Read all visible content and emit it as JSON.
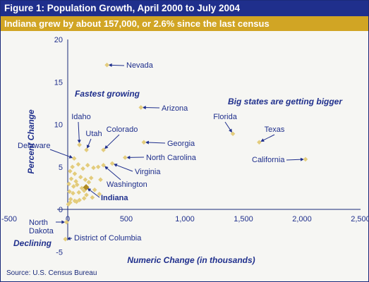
{
  "header": {
    "title": "Figure 1: Population Growth, April 2000 to July 2004",
    "subtitle": "Indiana grew by about 157,000, or 2.6% since the last census"
  },
  "footer": {
    "source": "Source: U.S. Census Bureau"
  },
  "colors": {
    "navy": "#1f2f8c",
    "gold": "#d1a524",
    "marker": "#e3cc7c",
    "indiana_marker": "#b08a20"
  },
  "chart_data": {
    "type": "scatter",
    "xlabel": "Numeric Change (in thousands)",
    "ylabel": "Percent Change",
    "xlim": [
      -500,
      2500
    ],
    "ylim": [
      -5,
      20
    ],
    "xticks": [
      -500,
      0,
      500,
      1000,
      1500,
      2000,
      2500
    ],
    "xtick_labels": [
      "-500",
      "0",
      "500",
      "1,000",
      "1,500",
      "2,000",
      "2,500"
    ],
    "yticks": [
      -5,
      0,
      5,
      10,
      15,
      20
    ],
    "grid": false,
    "annotations": [
      "Fastest growing",
      "Big states are getting bigger",
      "Declining"
    ],
    "labeled_points": [
      {
        "label": "Nevada",
        "x": 335,
        "y": 17.0
      },
      {
        "label": "Arizona",
        "x": 625,
        "y": 12.0
      },
      {
        "label": "Florida",
        "x": 1410,
        "y": 8.9
      },
      {
        "label": "Texas",
        "x": 1635,
        "y": 7.9
      },
      {
        "label": "California",
        "x": 2030,
        "y": 5.9
      },
      {
        "label": "Georgia",
        "x": 650,
        "y": 7.9
      },
      {
        "label": "North Carolina",
        "x": 490,
        "y": 6.1
      },
      {
        "label": "Idaho",
        "x": 100,
        "y": 7.6
      },
      {
        "label": "Utah",
        "x": 160,
        "y": 7.0
      },
      {
        "label": "Colorado",
        "x": 305,
        "y": 7.0
      },
      {
        "label": "Delaware",
        "x": 55,
        "y": 6.0
      },
      {
        "label": "Virginia",
        "x": 380,
        "y": 5.4
      },
      {
        "label": "Washington",
        "x": 305,
        "y": 5.2
      },
      {
        "label": "Indiana",
        "x": 157,
        "y": 2.6
      },
      {
        "label": "North Dakota",
        "x": -10,
        "y": -1.5
      },
      {
        "label": "District of Columbia",
        "x": -20,
        "y": -3.5
      }
    ],
    "other_points": [
      {
        "x": 20,
        "y": 4.5
      },
      {
        "x": 40,
        "y": 5.0
      },
      {
        "x": 60,
        "y": 4.2
      },
      {
        "x": 90,
        "y": 5.3
      },
      {
        "x": 130,
        "y": 4.8
      },
      {
        "x": 170,
        "y": 5.2
      },
      {
        "x": 220,
        "y": 4.9
      },
      {
        "x": 260,
        "y": 5.0
      },
      {
        "x": 30,
        "y": 3.6
      },
      {
        "x": 70,
        "y": 3.3
      },
      {
        "x": 110,
        "y": 3.8
      },
      {
        "x": 150,
        "y": 3.5
      },
      {
        "x": 200,
        "y": 3.7
      },
      {
        "x": 180,
        "y": 3.2
      },
      {
        "x": 280,
        "y": 3.5
      },
      {
        "x": 10,
        "y": 3.0
      },
      {
        "x": 50,
        "y": 2.7
      },
      {
        "x": 80,
        "y": 2.9
      },
      {
        "x": 120,
        "y": 2.5
      },
      {
        "x": 140,
        "y": 2.2
      },
      {
        "x": 230,
        "y": 2.3
      },
      {
        "x": 270,
        "y": 1.8
      },
      {
        "x": 15,
        "y": 2.1
      },
      {
        "x": 45,
        "y": 1.9
      },
      {
        "x": 95,
        "y": 2.0
      },
      {
        "x": 160,
        "y": 1.7
      },
      {
        "x": 210,
        "y": 1.4
      },
      {
        "x": 25,
        "y": 1.2
      },
      {
        "x": 60,
        "y": 1.0
      },
      {
        "x": 100,
        "y": 1.1
      },
      {
        "x": 140,
        "y": 1.3
      },
      {
        "x": 20,
        "y": 0.8
      },
      {
        "x": 75,
        "y": 0.9
      },
      {
        "x": 5,
        "y": 0.6
      }
    ]
  }
}
